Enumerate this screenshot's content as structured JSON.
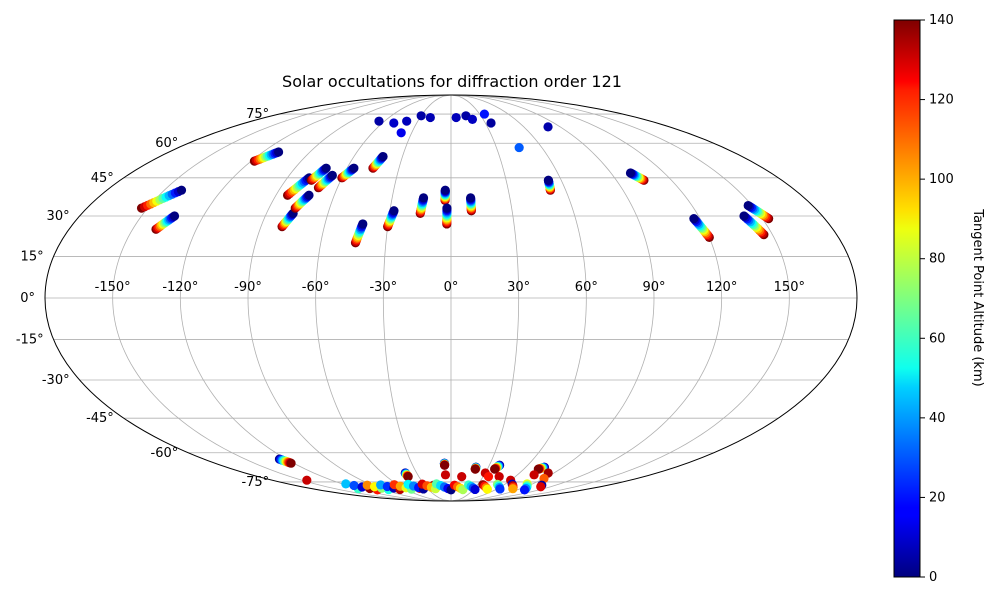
{
  "chart_data": {
    "type": "scatter",
    "projection": "mollweide",
    "title": "Solar occultations for diffraction order 121",
    "xlabel": "",
    "ylabel": "",
    "lon_range": [
      -180,
      180
    ],
    "lat_range": [
      -90,
      90
    ],
    "lon_ticks": [
      "-150°",
      "-120°",
      "-90°",
      "-60°",
      "-30°",
      "0°",
      "30°",
      "60°",
      "90°",
      "120°",
      "150°"
    ],
    "lat_ticks": [
      "-75°",
      "-60°",
      "-45°",
      "-30°",
      "-15°",
      "0°",
      "15°",
      "30°",
      "45°",
      "60°",
      "75°"
    ],
    "grid": true,
    "colormap": "jet",
    "colorbar": {
      "label": "Tangent Point Altitude (km)",
      "range": [
        0,
        140
      ],
      "ticks": [
        "0",
        "20",
        "40",
        "60",
        "80",
        "100",
        "120",
        "140"
      ]
    },
    "tracks_north": [
      {
        "lon": -153,
        "lat": 33,
        "dlon": 12,
        "dlat": 7
      },
      {
        "lon": -139,
        "lat": 25,
        "dlon": 5,
        "dlat": 5
      },
      {
        "lon": -118,
        "lat": 52,
        "dlon": 8,
        "dlat": 4
      },
      {
        "lon": -84,
        "lat": 38,
        "dlon": 6,
        "dlat": 7
      },
      {
        "lon": -80,
        "lat": 26,
        "dlon": 3,
        "dlat": 5
      },
      {
        "lon": -77,
        "lat": 33,
        "dlon": 4,
        "dlat": 5
      },
      {
        "lon": -76,
        "lat": 44,
        "dlon": 4,
        "dlat": 5
      },
      {
        "lon": -70,
        "lat": 41,
        "dlon": 4,
        "dlat": 5
      },
      {
        "lon": -60,
        "lat": 45,
        "dlon": 4,
        "dlat": 4
      },
      {
        "lon": -45,
        "lat": 49,
        "dlon": 3,
        "dlat": 5
      },
      {
        "lon": -44,
        "lat": 20,
        "dlon": 2,
        "dlat": 7
      },
      {
        "lon": -30,
        "lat": 26,
        "dlon": 2,
        "dlat": 6
      },
      {
        "lon": -15,
        "lat": 31,
        "dlon": 1,
        "dlat": 6
      },
      {
        "lon": -3,
        "lat": 36,
        "dlon": 0,
        "dlat": 4
      },
      {
        "lon": -2,
        "lat": 27,
        "dlon": 0,
        "dlat": 6
      },
      {
        "lon": 10,
        "lat": 32,
        "dlon": 0,
        "dlat": 5
      },
      {
        "lon": 52,
        "lat": 40,
        "dlon": 1,
        "dlat": 4
      },
      {
        "lon": 105,
        "lat": 44,
        "dlon": -4,
        "dlat": 3
      },
      {
        "lon": 120,
        "lat": 22,
        "dlon": -3,
        "dlat": 7
      },
      {
        "lon": 146,
        "lat": 23,
        "dlon": -4,
        "dlat": 7
      },
      {
        "lon": 153,
        "lat": 29,
        "dlon": -5,
        "dlat": 5
      }
    ],
    "tracks_south": [
      {
        "lon": -125,
        "lat": -63,
        "dlon": 3,
        "dlat": -2
      },
      {
        "lon": -40,
        "lat": -70,
        "dlon": 0,
        "dlat": -2
      },
      {
        "lon": -5,
        "lat": -65,
        "dlon": 0,
        "dlat": -1
      },
      {
        "lon": 20,
        "lat": -67,
        "dlon": 0,
        "dlat": -1
      },
      {
        "lon": 38,
        "lat": -66,
        "dlon": -2,
        "dlat": -2
      },
      {
        "lon": 75,
        "lat": -67,
        "dlon": -3,
        "dlat": -1
      }
    ],
    "dots_north": [
      {
        "lon": -65,
        "lat": 71,
        "alt": 5
      },
      {
        "lon": -50,
        "lat": 70,
        "alt": 10
      },
      {
        "lon": -40,
        "lat": 71,
        "alt": 8
      },
      {
        "lon": -38,
        "lat": 65,
        "alt": 15
      },
      {
        "lon": -30,
        "lat": 74,
        "alt": 5
      },
      {
        "lon": -20,
        "lat": 73,
        "alt": 7
      },
      {
        "lon": 5,
        "lat": 73,
        "alt": 8
      },
      {
        "lon": 15,
        "lat": 74,
        "alt": 5
      },
      {
        "lon": 20,
        "lat": 72,
        "alt": 9
      },
      {
        "lon": 35,
        "lat": 75,
        "alt": 20
      },
      {
        "lon": 35,
        "lat": 70,
        "alt": 4
      },
      {
        "lon": 45,
        "lat": 58,
        "alt": 30
      },
      {
        "lon": 80,
        "lat": 68,
        "alt": 6
      }
    ],
    "dots_south": [
      {
        "lon": -145,
        "lat": -74,
        "alt": 130
      },
      {
        "lon": -85,
        "lat": -78,
        "alt": 20
      },
      {
        "lon": -50,
        "lat": -77,
        "alt": 15
      },
      {
        "lon": -40,
        "lat": -79,
        "alt": 130
      },
      {
        "lon": -20,
        "lat": -77,
        "alt": 135
      },
      {
        "lon": -5,
        "lat": -71,
        "alt": 130
      },
      {
        "lon": 10,
        "lat": -72,
        "alt": 130
      },
      {
        "lon": 30,
        "lat": -70,
        "alt": 130
      },
      {
        "lon": 35,
        "lat": -72,
        "alt": 120
      },
      {
        "lon": 45,
        "lat": -72,
        "alt": 130
      },
      {
        "lon": 60,
        "lat": -74,
        "alt": 130
      },
      {
        "lon": 75,
        "lat": -71,
        "alt": 130
      },
      {
        "lon": 85,
        "lat": -70,
        "alt": 135
      },
      {
        "lon": 90,
        "lat": -73,
        "alt": 110
      }
    ],
    "south_band": {
      "lat_min": -80,
      "lat_max": -76,
      "lon_min": -120,
      "lon_max": 110
    }
  }
}
